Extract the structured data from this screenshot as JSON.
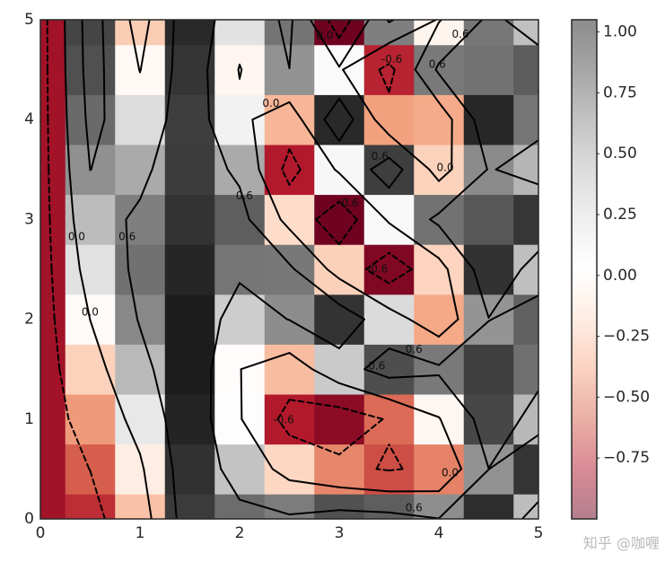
{
  "chart_data": {
    "type": "contour",
    "x": [
      0,
      0.5,
      1,
      1.5,
      2,
      2.5,
      3,
      3.5,
      4,
      4.5,
      5
    ],
    "y": [
      0,
      0.5,
      1,
      1.5,
      2,
      2.5,
      3,
      3.5,
      4,
      4.5,
      5
    ],
    "z": [
      [
        -0.839,
        -0.736,
        -0.275,
        0.916,
        0.735,
        0.678,
        0.831,
        0.786,
        0.61,
        0.973,
        0.419
      ],
      [
        -0.839,
        -0.595,
        -0.079,
        0.958,
        0.385,
        -0.196,
        -0.478,
        -0.641,
        -0.49,
        0.596,
        0.94
      ],
      [
        -0.839,
        -0.417,
        0.18,
        1.009,
        0.035,
        -0.793,
        -0.898,
        -0.557,
        -0.028,
        0.871,
        0.442
      ],
      [
        -0.839,
        -0.213,
        0.439,
        1.042,
        0.009,
        -0.297,
        0.351,
        0.841,
        0.688,
        0.902,
        0.72
      ],
      [
        -0.839,
        0.004,
        0.634,
        1.039,
        0.33,
        0.614,
        0.948,
        0.258,
        -0.37,
        0.588,
        0.773
      ],
      [
        -0.839,
        0.221,
        0.717,
        1.002,
        0.702,
        0.692,
        -0.218,
        -0.932,
        -0.205,
        0.952,
        0.41
      ],
      [
        -0.839,
        0.425,
        0.668,
        0.95,
        0.785,
        -0.17,
        -0.979,
        0.074,
        0.715,
        0.81,
        0.938
      ],
      [
        -0.839,
        0.602,
        0.499,
        0.912,
        0.501,
        -0.791,
        0.078,
        0.905,
        -0.215,
        0.625,
        0.455
      ],
      [
        -0.839,
        0.741,
        0.252,
        0.907,
        0.112,
        -0.321,
        0.99,
        -0.397,
        -0.361,
        0.999,
        0.701
      ],
      [
        -0.839,
        0.835,
        -0.014,
        0.94,
        -0.025,
        0.597,
        0.061,
        -0.764,
        0.691,
        0.714,
        0.79
      ],
      [
        -0.839,
        0.876,
        -0.232,
        0.991,
        0.217,
        0.706,
        -0.981,
        0.669,
        -0.039,
        0.698,
        0.401
      ]
    ],
    "levels": [
      {
        "value": -0.6,
        "label": "-0.6"
      },
      {
        "value": 0,
        "label": "0.0"
      },
      {
        "value": 0.6,
        "label": "0.6"
      }
    ],
    "xlim": [
      0,
      5
    ],
    "ylim": [
      0,
      5
    ],
    "xticks": [
      0,
      1,
      2,
      3,
      4,
      5
    ],
    "yticks": [
      0,
      1,
      2,
      3,
      4,
      5
    ],
    "zlim": [
      -1.0,
      1.05
    ],
    "colorbar_ticks": [
      {
        "value": 1.0,
        "label": "1.00"
      },
      {
        "value": 0.75,
        "label": "0.75"
      },
      {
        "value": 0.5,
        "label": "0.50"
      },
      {
        "value": 0.25,
        "label": "0.25"
      },
      {
        "value": 0,
        "label": "0.00"
      },
      {
        "value": -0.25,
        "label": "−0.25"
      },
      {
        "value": -0.5,
        "label": "−0.50"
      },
      {
        "value": -0.75,
        "label": "−0.75"
      }
    ],
    "colormap": [
      "#67001f",
      "#b2182b",
      "#d6604d",
      "#f4a582",
      "#fddbc7",
      "#ffffff",
      "#e0e0e0",
      "#bababa",
      "#878787",
      "#4d4d4d",
      "#1a1a1a"
    ],
    "colorbar_alpha": 0.5,
    "watermark": "知乎 @咖喱"
  }
}
